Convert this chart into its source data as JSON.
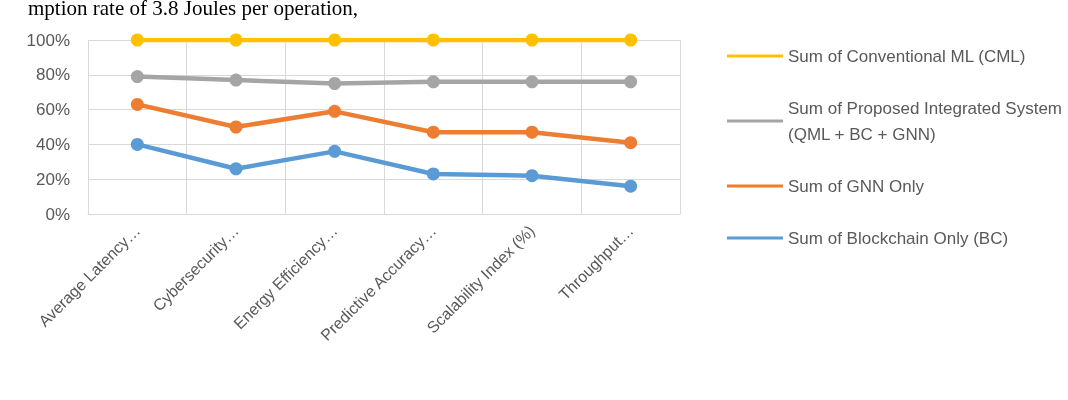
{
  "chart_data": {
    "type": "line",
    "annotations": [
      "mption rate of 3.8 Joules per operation,"
    ],
    "categories": [
      "Average Latency…",
      "Cybersecurity…",
      "Energy Efficiency…",
      "Predictive Accuracy…",
      "Scalability Index (%)",
      "Throughput…"
    ],
    "series": [
      {
        "name": "Sum of Conventional ML (CML)",
        "color": "#ffc000",
        "values": [
          100,
          100,
          100,
          100,
          100,
          100
        ]
      },
      {
        "name": "Sum of Proposed Integrated System (QML + BC + GNN)",
        "color": "#a5a5a5",
        "values": [
          79,
          77,
          75,
          76,
          76,
          76
        ]
      },
      {
        "name": "Sum of GNN Only",
        "color": "#ed7d31",
        "values": [
          63,
          50,
          59,
          47,
          47,
          41
        ]
      },
      {
        "name": "Sum of Blockchain Only (BC)",
        "color": "#5b9bd5",
        "values": [
          40,
          26,
          36,
          23,
          22,
          16
        ]
      }
    ],
    "ylim": [
      0,
      100
    ],
    "yticks": [
      {
        "value": 0,
        "label": "0%"
      },
      {
        "value": 20,
        "label": "20%"
      },
      {
        "value": 40,
        "label": "40%"
      },
      {
        "value": 60,
        "label": "60%"
      },
      {
        "value": 80,
        "label": "80%"
      },
      {
        "value": 100,
        "label": "100%"
      }
    ],
    "grid": true,
    "legend": "right",
    "marker": "circle",
    "line_style": "solid"
  }
}
